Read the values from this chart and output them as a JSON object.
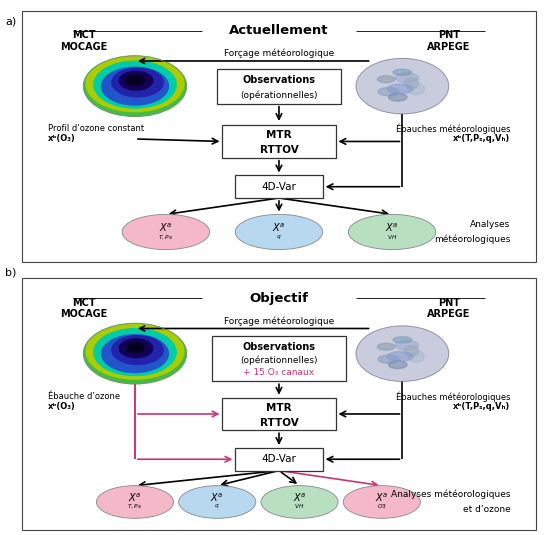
{
  "fig_width": 5.47,
  "fig_height": 5.35,
  "dpi": 100,
  "panel_a_title": "Actuellement",
  "panel_b_title": "Objectif",
  "forcage_label": "Forçage météorologique",
  "mct_mocage_label": "MCT\nMOCAGE",
  "pnt_arpege_label": "PNT\nARPEGE",
  "obs_label_a_line1": "Observations",
  "obs_label_a_line2": "(opérationnelles)",
  "obs_label_b_line1": "Observations",
  "obs_label_b_line2": "(opérationnelles)",
  "obs_label_b_line3": "+ 15 O₃ canaux",
  "mtr_rttov_label": "MTR\nRTTOV",
  "var4d_label": "4D-Var",
  "profil_ozone_label": "Profil d’ozone constant",
  "profil_ozone_label2": "xᵇ(O₃)",
  "ebauche_ozone_label": "Ébauche d’ozone",
  "ebauche_ozone_label2": "xᵇ(O₃)",
  "ebauches_meteo_label": "Ébauches météorologiques",
  "ebauches_meteo_label2": "xᵇ(T,Pₛ,q,Vₕ)",
  "analyses_meteo_a_label": "Analyses",
  "analyses_meteo_a_label2": "météorologiques",
  "analyses_meteo_b_label": "Analyses météorologiques",
  "analyses_meteo_b_label2": "et d’ozone",
  "color_pink": "#CC3377",
  "color_pink_ellipse": "#F4B8C8",
  "color_cyan_ellipse": "#B8D8F0",
  "color_green_ellipse": "#B8E0C0",
  "color_black": "#000000",
  "color_white": "#FFFFFF"
}
